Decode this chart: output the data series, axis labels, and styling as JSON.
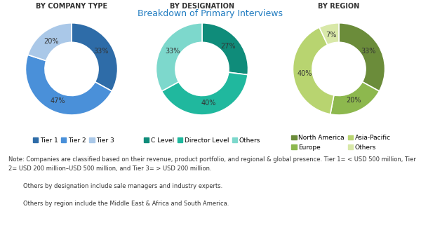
{
  "title": "Breakdown of Primary Interviews",
  "title_color": "#1f7bc0",
  "charts": [
    {
      "subtitle": "BY COMPANY TYPE",
      "values": [
        33,
        47,
        20
      ],
      "labels": [
        "33%",
        "47%",
        "20%"
      ],
      "colors": [
        "#2e6ca8",
        "#4a90d9",
        "#aac8e8"
      ],
      "legend_labels": [
        "Tier 1",
        "Tier 2",
        "Tier 3"
      ],
      "legend_colors": [
        "#2e6ca8",
        "#4a90d9",
        "#aac8e8"
      ],
      "start_angle": 90,
      "counterclock": false
    },
    {
      "subtitle": "BY DESIGNATION",
      "values": [
        27,
        40,
        33
      ],
      "labels": [
        "27%",
        "40%",
        "33%"
      ],
      "colors": [
        "#0f8c7a",
        "#20b89e",
        "#7dd8cc"
      ],
      "legend_labels": [
        "C Level",
        "Director Level",
        "Others"
      ],
      "legend_colors": [
        "#0f8c7a",
        "#20b89e",
        "#7dd8cc"
      ],
      "start_angle": 90,
      "counterclock": false
    },
    {
      "subtitle": "BY REGION",
      "values": [
        33,
        20,
        40,
        7
      ],
      "labels": [
        "33%",
        "20%",
        "40%",
        "7%"
      ],
      "colors": [
        "#6b8c3a",
        "#8db84e",
        "#b8d470",
        "#d8e8a8"
      ],
      "legend_labels": [
        "North America",
        "Europe",
        "Asia-Pacific",
        "Others"
      ],
      "legend_colors": [
        "#6b8c3a",
        "#8db84e",
        "#b8d470",
        "#d8e8a8"
      ],
      "start_angle": 90,
      "counterclock": false
    }
  ],
  "note_line1": "Note: Companies are classified based on their revenue, product portfolio, and regional & global presence. Tier 1= < USD 500 million, Tier",
  "note_line2": "2= USD 200 million–USD 500 million, and Tier 3= > USD 200 million.",
  "note_line3": "Others by designation include sale managers and industry experts.",
  "note_line4": "Others by region include the Middle East & Africa and South America.",
  "background_color": "#ffffff"
}
